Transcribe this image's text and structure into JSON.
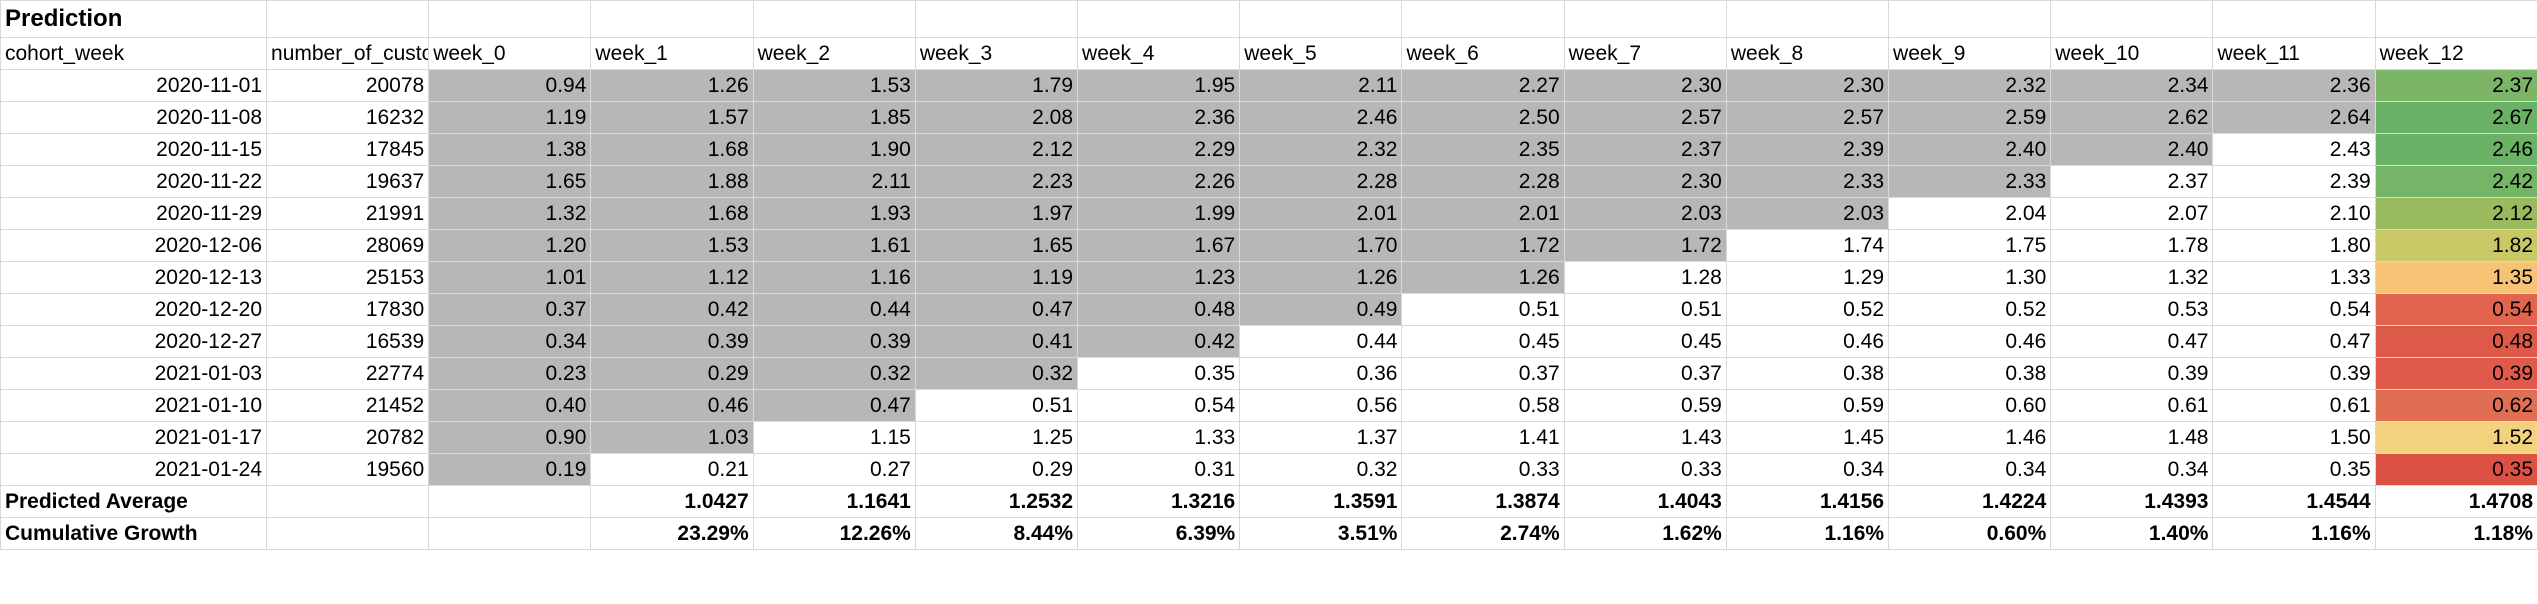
{
  "title": "Prediction",
  "columns": [
    "cohort_week",
    "number_of_custo",
    "week_0",
    "week_1",
    "week_2",
    "week_3",
    "week_4",
    "week_5",
    "week_6",
    "week_7",
    "week_8",
    "week_9",
    "week_10",
    "week_11",
    "week_12"
  ],
  "colors": {
    "gray": "#b7b7b7",
    "week12": [
      "#7cb568",
      "#6ab167",
      "#6bb166",
      "#76b567",
      "#99bb5e",
      "#c8c866",
      "#f7c374",
      "#e0644e",
      "#dd5a49",
      "#e05a4b",
      "#e06e52",
      "#f3d27e",
      "#dd5145"
    ]
  },
  "rows": [
    {
      "cohort": "2020-11-01",
      "count": "20078",
      "values": [
        "0.94",
        "1.26",
        "1.53",
        "1.79",
        "1.95",
        "2.11",
        "2.27",
        "2.30",
        "2.30",
        "2.32",
        "2.34",
        "2.36",
        "2.37"
      ],
      "actual_weeks": 12
    },
    {
      "cohort": "2020-11-08",
      "count": "16232",
      "values": [
        "1.19",
        "1.57",
        "1.85",
        "2.08",
        "2.36",
        "2.46",
        "2.50",
        "2.57",
        "2.57",
        "2.59",
        "2.62",
        "2.64",
        "2.67"
      ],
      "actual_weeks": 12
    },
    {
      "cohort": "2020-11-15",
      "count": "17845",
      "values": [
        "1.38",
        "1.68",
        "1.90",
        "2.12",
        "2.29",
        "2.32",
        "2.35",
        "2.37",
        "2.39",
        "2.40",
        "2.40",
        "2.43",
        "2.46"
      ],
      "actual_weeks": 11
    },
    {
      "cohort": "2020-11-22",
      "count": "19637",
      "values": [
        "1.65",
        "1.88",
        "2.11",
        "2.23",
        "2.26",
        "2.28",
        "2.28",
        "2.30",
        "2.33",
        "2.33",
        "2.37",
        "2.39",
        "2.42"
      ],
      "actual_weeks": 10
    },
    {
      "cohort": "2020-11-29",
      "count": "21991",
      "values": [
        "1.32",
        "1.68",
        "1.93",
        "1.97",
        "1.99",
        "2.01",
        "2.01",
        "2.03",
        "2.03",
        "2.04",
        "2.07",
        "2.10",
        "2.12"
      ],
      "actual_weeks": 9
    },
    {
      "cohort": "2020-12-06",
      "count": "28069",
      "values": [
        "1.20",
        "1.53",
        "1.61",
        "1.65",
        "1.67",
        "1.70",
        "1.72",
        "1.72",
        "1.74",
        "1.75",
        "1.78",
        "1.80",
        "1.82"
      ],
      "actual_weeks": 8
    },
    {
      "cohort": "2020-12-13",
      "count": "25153",
      "values": [
        "1.01",
        "1.12",
        "1.16",
        "1.19",
        "1.23",
        "1.26",
        "1.26",
        "1.28",
        "1.29",
        "1.30",
        "1.32",
        "1.33",
        "1.35"
      ],
      "actual_weeks": 7
    },
    {
      "cohort": "2020-12-20",
      "count": "17830",
      "values": [
        "0.37",
        "0.42",
        "0.44",
        "0.47",
        "0.48",
        "0.49",
        "0.51",
        "0.51",
        "0.52",
        "0.52",
        "0.53",
        "0.54",
        "0.54"
      ],
      "actual_weeks": 6
    },
    {
      "cohort": "2020-12-27",
      "count": "16539",
      "values": [
        "0.34",
        "0.39",
        "0.39",
        "0.41",
        "0.42",
        "0.44",
        "0.45",
        "0.45",
        "0.46",
        "0.46",
        "0.47",
        "0.47",
        "0.48"
      ],
      "actual_weeks": 5
    },
    {
      "cohort": "2021-01-03",
      "count": "22774",
      "values": [
        "0.23",
        "0.29",
        "0.32",
        "0.32",
        "0.35",
        "0.36",
        "0.37",
        "0.37",
        "0.38",
        "0.38",
        "0.39",
        "0.39",
        "0.39"
      ],
      "actual_weeks": 4
    },
    {
      "cohort": "2021-01-10",
      "count": "21452",
      "values": [
        "0.40",
        "0.46",
        "0.47",
        "0.51",
        "0.54",
        "0.56",
        "0.58",
        "0.59",
        "0.59",
        "0.60",
        "0.61",
        "0.61",
        "0.62"
      ],
      "actual_weeks": 3
    },
    {
      "cohort": "2021-01-17",
      "count": "20782",
      "values": [
        "0.90",
        "1.03",
        "1.15",
        "1.25",
        "1.33",
        "1.37",
        "1.41",
        "1.43",
        "1.45",
        "1.46",
        "1.48",
        "1.50",
        "1.52"
      ],
      "actual_weeks": 2
    },
    {
      "cohort": "2021-01-24",
      "count": "19560",
      "values": [
        "0.19",
        "0.21",
        "0.27",
        "0.29",
        "0.31",
        "0.32",
        "0.33",
        "0.33",
        "0.34",
        "0.34",
        "0.34",
        "0.35",
        "0.35"
      ],
      "actual_weeks": 1
    }
  ],
  "summary": [
    {
      "label": "Predicted Average",
      "values": [
        "",
        "1.0427",
        "1.1641",
        "1.2532",
        "1.3216",
        "1.3591",
        "1.3874",
        "1.4043",
        "1.4156",
        "1.4224",
        "1.4393",
        "1.4544",
        "1.4708"
      ]
    },
    {
      "label": "Cumulative Growth",
      "values": [
        "",
        "23.29%",
        "12.26%",
        "8.44%",
        "6.39%",
        "3.51%",
        "2.74%",
        "1.62%",
        "1.16%",
        "0.60%",
        "1.40%",
        "1.16%",
        "1.18%"
      ]
    }
  ]
}
